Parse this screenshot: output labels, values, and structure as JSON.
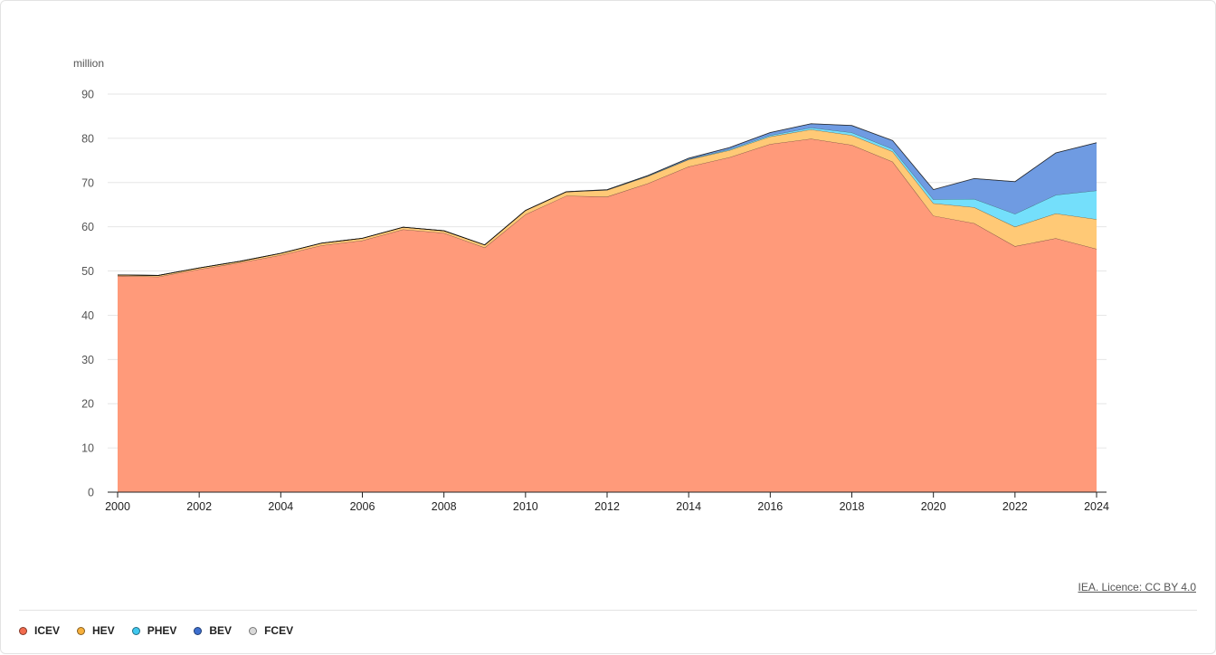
{
  "chart_data": {
    "type": "area",
    "stacked": true,
    "ylabel": "million",
    "ylim": [
      0,
      90
    ],
    "yticks": [
      0,
      10,
      20,
      30,
      40,
      50,
      60,
      70,
      80,
      90
    ],
    "xticks": [
      2000,
      2002,
      2004,
      2006,
      2008,
      2010,
      2012,
      2014,
      2016,
      2018,
      2020,
      2022,
      2024
    ],
    "grid": true,
    "legend_position": "bottom",
    "x": [
      2000,
      2001,
      2002,
      2003,
      2004,
      2005,
      2006,
      2007,
      2008,
      2009,
      2010,
      2011,
      2012,
      2013,
      2014,
      2015,
      2016,
      2017,
      2018,
      2019,
      2020,
      2021,
      2022,
      2023,
      2024
    ],
    "series": [
      {
        "name": "ICEV",
        "color": "#ff9a7a",
        "dot_color": "#f26b4e",
        "values": [
          48.9,
          48.7,
          50.4,
          51.9,
          53.6,
          55.8,
          56.9,
          59.4,
          58.6,
          55.3,
          62.8,
          67.0,
          66.8,
          69.8,
          73.6,
          75.7,
          78.7,
          79.9,
          78.5,
          74.7,
          62.5,
          60.8,
          55.6,
          57.4,
          55.0
        ]
      },
      {
        "name": "HEV",
        "color": "#ffc976",
        "dot_color": "#f7b03c",
        "values": [
          0.2,
          0.3,
          0.3,
          0.3,
          0.4,
          0.5,
          0.5,
          0.5,
          0.5,
          0.6,
          0.9,
          0.9,
          1.5,
          1.6,
          1.6,
          1.6,
          1.7,
          2.1,
          2.2,
          2.3,
          2.8,
          3.6,
          4.4,
          5.6,
          6.7
        ]
      },
      {
        "name": "PHEV",
        "color": "#74dffb",
        "dot_color": "#3fc8ef",
        "values": [
          0,
          0,
          0,
          0,
          0,
          0,
          0,
          0,
          0,
          0,
          0,
          0,
          0.03,
          0.1,
          0.1,
          0.2,
          0.3,
          0.4,
          0.6,
          0.6,
          0.9,
          1.9,
          2.9,
          4.2,
          6.5
        ]
      },
      {
        "name": "BEV",
        "color": "#6f9be2",
        "dot_color": "#3d6fcf",
        "values": [
          0,
          0,
          0,
          0,
          0,
          0,
          0,
          0,
          0,
          0,
          0.01,
          0.04,
          0.06,
          0.1,
          0.2,
          0.4,
          0.6,
          0.9,
          1.6,
          1.9,
          2.2,
          4.6,
          7.3,
          9.5,
          10.8
        ]
      },
      {
        "name": "FCEV",
        "color": "#d9d9d9",
        "dot_color": "#d9d9d9",
        "values": [
          0,
          0,
          0,
          0,
          0,
          0,
          0,
          0,
          0,
          0,
          0,
          0,
          0,
          0,
          0,
          0.001,
          0.003,
          0.003,
          0.004,
          0.008,
          0.009,
          0.016,
          0.015,
          0.013,
          0.008
        ]
      }
    ]
  },
  "source_text": "IEA. Licence: CC BY 4.0"
}
